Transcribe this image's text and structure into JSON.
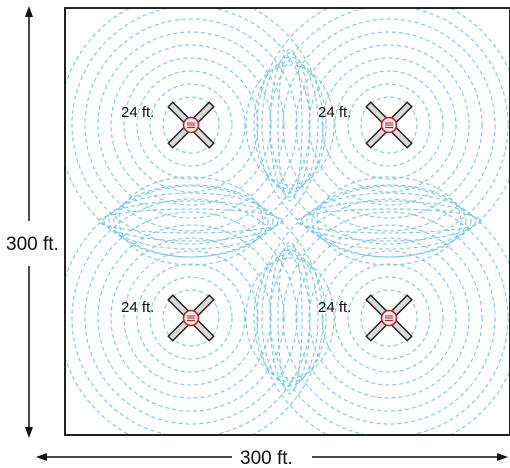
{
  "dimensions": {
    "height_label": "300 ft.",
    "width_label": "300 ft."
  },
  "fans": [
    {
      "label": "24 ft."
    },
    {
      "label": "24 ft."
    },
    {
      "label": "24 ft."
    },
    {
      "label": "24 ft."
    }
  ],
  "colors": {
    "airflow_lines": "#7cc6e6",
    "room_border": "#222222",
    "fan_blade": "#d9d9d9",
    "fan_outline": "#1a1a1a",
    "hub_fill": "#f3ecec",
    "hub_accent": "#b8282e"
  },
  "icons": {
    "fan": "ceiling-fan-icon",
    "arrow": "dimension-arrow-icon"
  }
}
